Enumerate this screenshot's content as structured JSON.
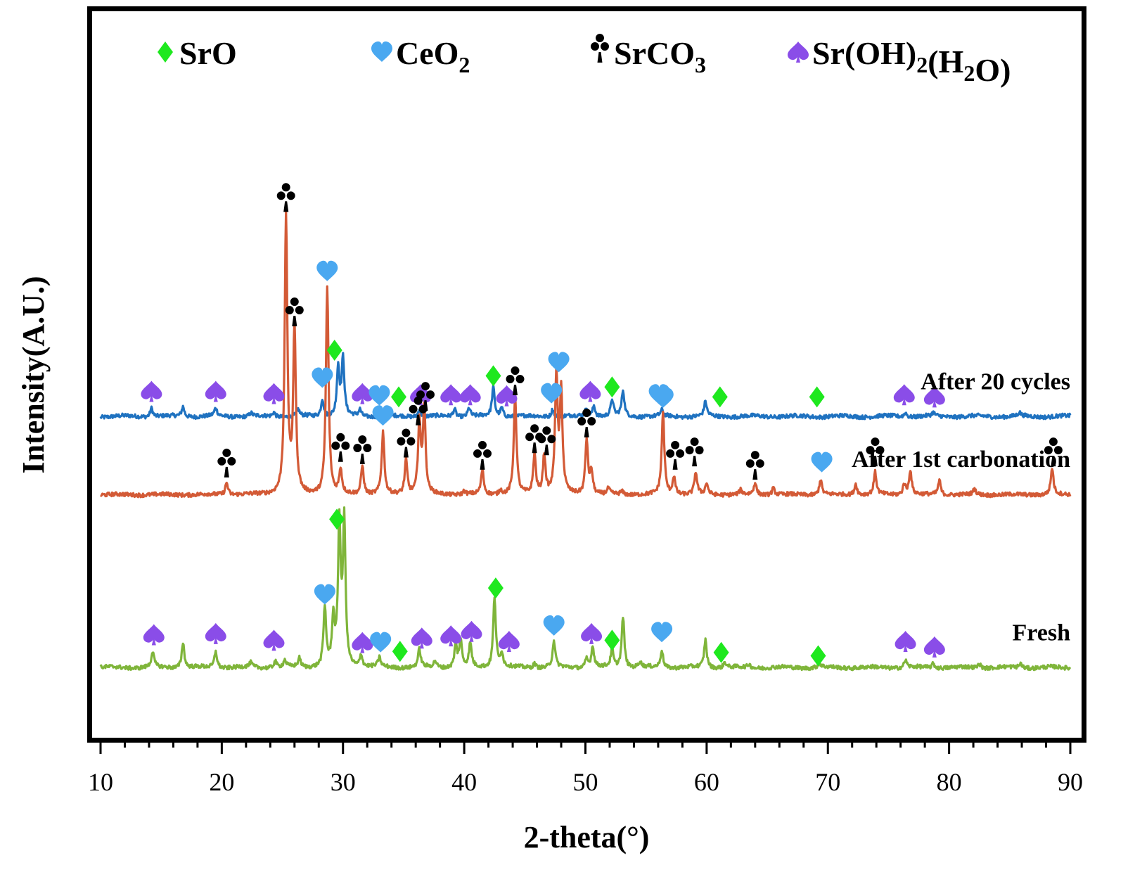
{
  "chart_data": {
    "type": "line",
    "xlabel": "2-theta(°)",
    "ylabel": "Intensity(A.U.)",
    "xlim": [
      10,
      90
    ],
    "x_ticks": [
      10,
      20,
      30,
      40,
      50,
      60,
      70,
      80,
      90
    ],
    "y_ticks_shown": false,
    "grid": false,
    "legend": {
      "placement": "top",
      "entries": [
        {
          "marker": "diamond",
          "color": "#1ee81e",
          "label": "SrO",
          "parts": [
            {
              "t": "SrO",
              "sub": false
            }
          ]
        },
        {
          "marker": "heart",
          "color": "#4aa8f0",
          "label": "CeO2",
          "parts": [
            {
              "t": "CeO",
              "sub": false
            },
            {
              "t": "2",
              "sub": true
            }
          ]
        },
        {
          "marker": "club",
          "color": "#000000",
          "label": "SrCO3",
          "parts": [
            {
              "t": "SrCO",
              "sub": false
            },
            {
              "t": "3",
              "sub": true
            }
          ]
        },
        {
          "marker": "spade",
          "color": "#8a4de8",
          "label": "Sr(OH)2(H2O)",
          "parts": [
            {
              "t": "Sr(OH)",
              "sub": false
            },
            {
              "t": "2",
              "sub": true
            },
            {
              "t": "(H",
              "sub": false
            },
            {
              "t": "2",
              "sub": true
            },
            {
              "t": "O)",
              "sub": false
            }
          ]
        }
      ]
    },
    "series": [
      {
        "name": "After 20 cycles",
        "color": "#1f72c0",
        "baseline": 0.15,
        "offset": 7.0,
        "peaks": [
          [
            14.2,
            0.8
          ],
          [
            16.8,
            0.9
          ],
          [
            19.5,
            0.7
          ],
          [
            22.4,
            0.3
          ],
          [
            24.3,
            0.4
          ],
          [
            26.3,
            0.6
          ],
          [
            28.3,
            1.6
          ],
          [
            29.6,
            4.4
          ],
          [
            30.0,
            5.1
          ],
          [
            31.4,
            0.6
          ],
          [
            33.1,
            0.5
          ],
          [
            36.3,
            0.7
          ],
          [
            39.2,
            0.7
          ],
          [
            40.4,
            0.8
          ],
          [
            42.4,
            2.6
          ],
          [
            43.1,
            0.8
          ],
          [
            47.3,
            0.7
          ],
          [
            50.1,
            0.8
          ],
          [
            50.7,
            1.0
          ],
          [
            52.2,
            1.5
          ],
          [
            53.1,
            2.3
          ],
          [
            56.3,
            0.5
          ],
          [
            59.9,
            1.3
          ],
          [
            76.4,
            0.4
          ],
          [
            78.7,
            0.3
          ],
          [
            85.8,
            0.3
          ]
        ],
        "markers": [
          {
            "type": "spade",
            "x": 14.2,
            "y": 2.4
          },
          {
            "type": "spade",
            "x": 19.5,
            "y": 2.4
          },
          {
            "type": "spade",
            "x": 24.3,
            "y": 2.2
          },
          {
            "type": "heart",
            "x": 28.3,
            "y": 3.6
          },
          {
            "type": "diamond",
            "x": 29.3,
            "y": 6.1
          },
          {
            "type": "spade",
            "x": 31.6,
            "y": 2.2
          },
          {
            "type": "heart",
            "x": 33.0,
            "y": 2.0
          },
          {
            "type": "diamond",
            "x": 34.6,
            "y": 1.9
          },
          {
            "type": "spade",
            "x": 36.4,
            "y": 2.1
          },
          {
            "type": "spade",
            "x": 38.9,
            "y": 2.1
          },
          {
            "type": "spade",
            "x": 40.5,
            "y": 2.1
          },
          {
            "type": "diamond",
            "x": 42.4,
            "y": 3.8
          },
          {
            "type": "spade",
            "x": 43.5,
            "y": 2.0
          },
          {
            "type": "heart",
            "x": 47.2,
            "y": 2.2
          },
          {
            "type": "spade",
            "x": 50.4,
            "y": 2.4
          },
          {
            "type": "diamond",
            "x": 52.2,
            "y": 2.8
          },
          {
            "type": "heart",
            "x": 56.1,
            "y": 2.1
          },
          {
            "type": "diamond",
            "x": 61.1,
            "y": 1.9
          },
          {
            "type": "diamond",
            "x": 69.1,
            "y": 1.9
          },
          {
            "type": "spade",
            "x": 76.3,
            "y": 2.1
          },
          {
            "type": "spade",
            "x": 78.8,
            "y": 1.9
          }
        ]
      },
      {
        "name": "After 1st carbonation",
        "color": "#d35a36",
        "baseline": 0.1,
        "offset": 0.0,
        "peaks": [
          [
            20.4,
            1.1
          ],
          [
            25.3,
            25.0
          ],
          [
            26.0,
            14.8
          ],
          [
            28.7,
            18.7
          ],
          [
            29.8,
            2.2
          ],
          [
            31.6,
            2.6
          ],
          [
            33.3,
            5.6
          ],
          [
            35.2,
            3.1
          ],
          [
            36.3,
            6.4
          ],
          [
            36.7,
            7.7
          ],
          [
            40.0,
            0.3
          ],
          [
            41.5,
            2.2
          ],
          [
            43.0,
            0.4
          ],
          [
            44.2,
            9.0
          ],
          [
            45.8,
            3.6
          ],
          [
            46.6,
            3.5
          ],
          [
            47.6,
            10.5
          ],
          [
            48.0,
            9.0
          ],
          [
            50.1,
            5.0
          ],
          [
            50.5,
            2.0
          ],
          [
            51.9,
            0.5
          ],
          [
            53.0,
            0.3
          ],
          [
            56.4,
            7.4
          ],
          [
            57.3,
            1.6
          ],
          [
            59.1,
            2.0
          ],
          [
            60.0,
            1.0
          ],
          [
            62.8,
            0.4
          ],
          [
            64.0,
            1.1
          ],
          [
            65.5,
            0.6
          ],
          [
            69.4,
            1.4
          ],
          [
            72.3,
            1.0
          ],
          [
            73.9,
            2.0
          ],
          [
            76.3,
            1.0
          ],
          [
            76.8,
            2.2
          ],
          [
            79.2,
            1.3
          ],
          [
            82.1,
            0.5
          ],
          [
            88.5,
            2.4
          ]
        ],
        "markers": [
          {
            "type": "club",
            "x": 20.4,
            "y": 2.6
          },
          {
            "type": "club",
            "x": 25.3,
            "y": 26.5
          },
          {
            "type": "club",
            "x": 26.0,
            "y": 16.2
          },
          {
            "type": "heart",
            "x": 28.7,
            "y": 20.2
          },
          {
            "type": "club",
            "x": 29.8,
            "y": 4.0
          },
          {
            "type": "club",
            "x": 31.6,
            "y": 3.8
          },
          {
            "type": "heart",
            "x": 33.3,
            "y": 7.2
          },
          {
            "type": "club",
            "x": 35.2,
            "y": 4.4
          },
          {
            "type": "club",
            "x": 36.2,
            "y": 7.3
          },
          {
            "type": "club",
            "x": 36.8,
            "y": 8.6
          },
          {
            "type": "club",
            "x": 41.5,
            "y": 3.3
          },
          {
            "type": "club",
            "x": 44.2,
            "y": 10.0
          },
          {
            "type": "club",
            "x": 45.8,
            "y": 4.8
          },
          {
            "type": "club",
            "x": 46.8,
            "y": 4.6
          },
          {
            "type": "heart",
            "x": 47.8,
            "y": 12.0
          },
          {
            "type": "club",
            "x": 50.1,
            "y": 6.2
          },
          {
            "type": "heart",
            "x": 56.4,
            "y": 8.8
          },
          {
            "type": "club",
            "x": 57.4,
            "y": 3.3
          },
          {
            "type": "club",
            "x": 59.0,
            "y": 3.6
          },
          {
            "type": "club",
            "x": 64.0,
            "y": 2.4
          },
          {
            "type": "heart",
            "x": 69.5,
            "y": 3.0
          },
          {
            "type": "club",
            "x": 73.9,
            "y": 3.6
          },
          {
            "type": "club",
            "x": 88.6,
            "y": 3.6
          }
        ]
      },
      {
        "name": "Fresh",
        "color": "#7fb53a",
        "baseline": 0.15,
        "offset": -15.6,
        "peaks": [
          [
            14.3,
            1.4
          ],
          [
            16.8,
            2.3
          ],
          [
            19.5,
            1.5
          ],
          [
            22.4,
            0.4
          ],
          [
            24.4,
            0.6
          ],
          [
            25.2,
            0.6
          ],
          [
            26.4,
            0.8
          ],
          [
            28.5,
            5.3
          ],
          [
            29.2,
            4.1
          ],
          [
            29.7,
            12.6
          ],
          [
            30.1,
            12.9
          ],
          [
            31.5,
            1.1
          ],
          [
            33.0,
            0.8
          ],
          [
            36.3,
            1.6
          ],
          [
            37.6,
            0.6
          ],
          [
            39.3,
            2.0
          ],
          [
            39.7,
            2.4
          ],
          [
            40.5,
            2.1
          ],
          [
            42.5,
            6.4
          ],
          [
            43.1,
            1.3
          ],
          [
            45.8,
            0.4
          ],
          [
            47.4,
            2.4
          ],
          [
            50.1,
            0.8
          ],
          [
            50.6,
            1.9
          ],
          [
            52.2,
            1.6
          ],
          [
            53.1,
            4.6
          ],
          [
            54.5,
            0.5
          ],
          [
            56.3,
            1.6
          ],
          [
            59.9,
            2.5
          ],
          [
            61.5,
            0.5
          ],
          [
            63.5,
            0.3
          ],
          [
            69.3,
            0.4
          ],
          [
            76.4,
            0.7
          ],
          [
            78.7,
            0.4
          ],
          [
            82.5,
            0.4
          ],
          [
            85.9,
            0.4
          ]
        ],
        "markers": [
          {
            "type": "spade",
            "x": 14.4,
            "y": 3.1
          },
          {
            "type": "spade",
            "x": 19.5,
            "y": 3.2
          },
          {
            "type": "spade",
            "x": 24.3,
            "y": 2.6
          },
          {
            "type": "heart",
            "x": 28.5,
            "y": 6.7
          },
          {
            "type": "diamond",
            "x": 29.5,
            "y": 13.5
          },
          {
            "type": "spade",
            "x": 31.6,
            "y": 2.4
          },
          {
            "type": "heart",
            "x": 33.1,
            "y": 2.4
          },
          {
            "type": "diamond",
            "x": 34.7,
            "y": 1.6
          },
          {
            "type": "spade",
            "x": 36.5,
            "y": 2.8
          },
          {
            "type": "spade",
            "x": 38.9,
            "y": 3.0
          },
          {
            "type": "spade",
            "x": 40.6,
            "y": 3.4
          },
          {
            "type": "diamond",
            "x": 42.6,
            "y": 7.3
          },
          {
            "type": "spade",
            "x": 43.7,
            "y": 2.5
          },
          {
            "type": "heart",
            "x": 47.4,
            "y": 3.9
          },
          {
            "type": "spade",
            "x": 50.5,
            "y": 3.2
          },
          {
            "type": "diamond",
            "x": 52.2,
            "y": 2.6
          },
          {
            "type": "heart",
            "x": 56.3,
            "y": 3.3
          },
          {
            "type": "diamond",
            "x": 61.2,
            "y": 1.5
          },
          {
            "type": "diamond",
            "x": 69.2,
            "y": 1.2
          },
          {
            "type": "spade",
            "x": 76.4,
            "y": 2.5
          },
          {
            "type": "spade",
            "x": 78.8,
            "y": 2.0
          }
        ]
      }
    ]
  }
}
